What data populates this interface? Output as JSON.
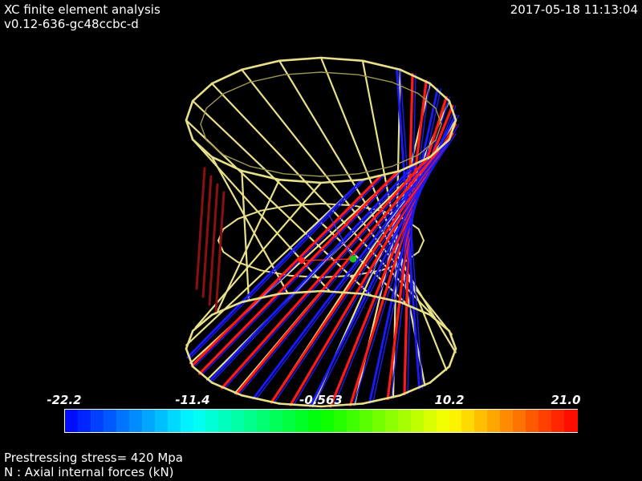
{
  "header": {
    "title": "XC finite element analysis",
    "version": "v0.12-636-gc48ccbc-d",
    "timestamp": "2017-05-18 11:13:04"
  },
  "scalar_bar": {
    "tick_labels": [
      "-22.2",
      "-11.4",
      "-0.563",
      "10.2",
      "21.0"
    ],
    "colors": [
      "#0000ff",
      "#00ffff",
      "#00ff00",
      "#ffff00",
      "#ff0000"
    ]
  },
  "footer": {
    "line1": "Prestressing stress= 420 Mpa",
    "line2": "N : Axial internal forces (kN)"
  },
  "colors": {
    "background": "#000000",
    "mesh": "#e8e08a",
    "tension": "#ff1a1a",
    "compression": "#1a1aff",
    "dark_red": "#8b1010"
  }
}
